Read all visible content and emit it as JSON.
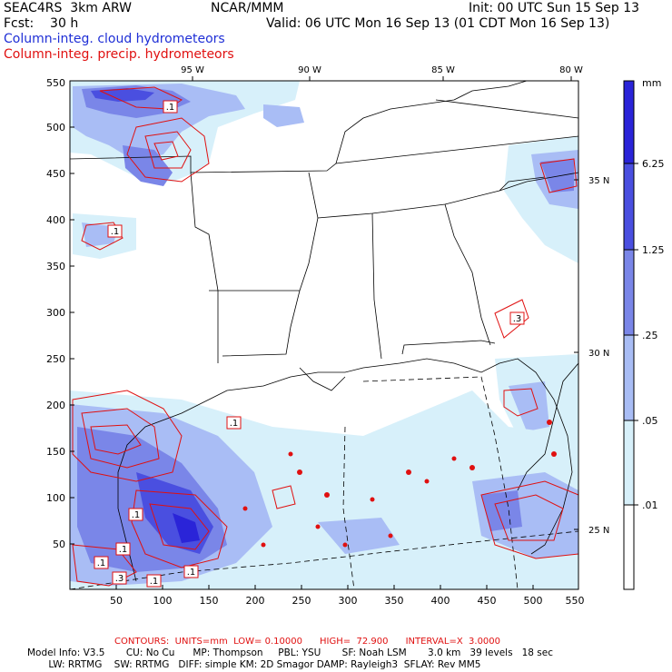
{
  "header": {
    "left_line1": "SEAC4RS  3km ARW",
    "left_line2": "Fcst:    30 h",
    "center": "NCAR/MMM",
    "init": "Init: 00 UTC Sun 15 Sep 13",
    "valid": "Valid: 06 UTC Mon 16 Sep 13 (01 CDT Mon 16 Sep 13)",
    "legend_cloud": "Column-integ. cloud hydrometeors",
    "legend_precip": "Column-integ. precip. hydrometeors"
  },
  "colors": {
    "cloud_series": "#1f2fd6",
    "precip_series": "#e01010",
    "shade_lightest": "#d7f0fa",
    "shade_light": "#a9bdf5",
    "shade_mid": "#7a86e8",
    "shade_dark": "#4a4fe0",
    "shade_darkest": "#2a24d8"
  },
  "axes": {
    "x_ticks": [
      "50",
      "100",
      "150",
      "200",
      "250",
      "300",
      "350",
      "400",
      "450",
      "500",
      "550"
    ],
    "y_ticks": [
      "550",
      "500",
      "450",
      "400",
      "350",
      "300",
      "250",
      "200",
      "150",
      "100",
      "50"
    ],
    "lon_labels": [
      "95 W",
      "90 W",
      "85 W",
      "80 W"
    ],
    "lat_labels": [
      "35 N",
      "30 N",
      "25 N"
    ]
  },
  "colorbar": {
    "unit": "mm",
    "labels": [
      "6.25",
      "1.25",
      ".25",
      ".05",
      ".01"
    ]
  },
  "contour_labels": [
    ".1",
    ".1",
    ".3",
    ".1",
    ".1",
    ".1",
    ".3",
    ".1",
    ".1",
    ".1"
  ],
  "footer": {
    "contours": "CONTOURS:  UNITS=mm  LOW= 0.10000      HIGH=  72.900      INTERVAL=X  3.0000",
    "model_line1": "Model Info: V3.5       CU: No Cu      MP: Thompson     PBL: YSU       SF: Noah LSM       3.0 km   39 levels   18 sec",
    "model_line2": "       LW: RRTMG    SW: RRTMG   DIFF: simple KM: 2D Smagor DAMP: Rayleigh3  SFLAY: Rev MM5"
  }
}
